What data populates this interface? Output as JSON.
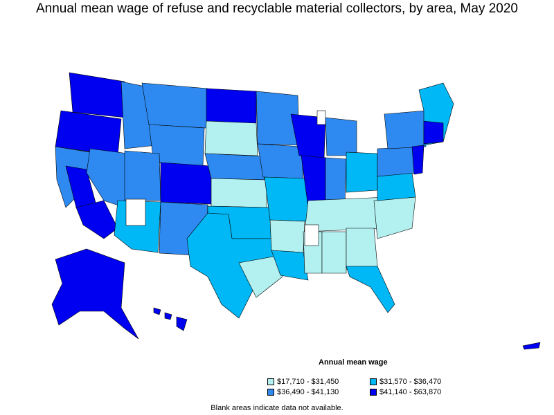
{
  "title": "Annual mean wage of refuse and recyclable material collectors, by area, May 2020",
  "legend": {
    "title": "Annual mean wage",
    "items": [
      {
        "label": "$17,710 - $31,450",
        "color": "#b3f0f0"
      },
      {
        "label": "$31,570 - $36,470",
        "color": "#00b8f5"
      },
      {
        "label": "$36,490 - $41,130",
        "color": "#2e8af0"
      },
      {
        "label": "$41,140 - $63,870",
        "color": "#0000f0"
      }
    ]
  },
  "footnote": "Blank areas indicate data not available.",
  "colors": {
    "tier1": "#b3f0f0",
    "tier2": "#00b8f5",
    "tier3": "#2e8af0",
    "tier4": "#0000f0",
    "blank": "#ffffff",
    "border": "#000000"
  }
}
